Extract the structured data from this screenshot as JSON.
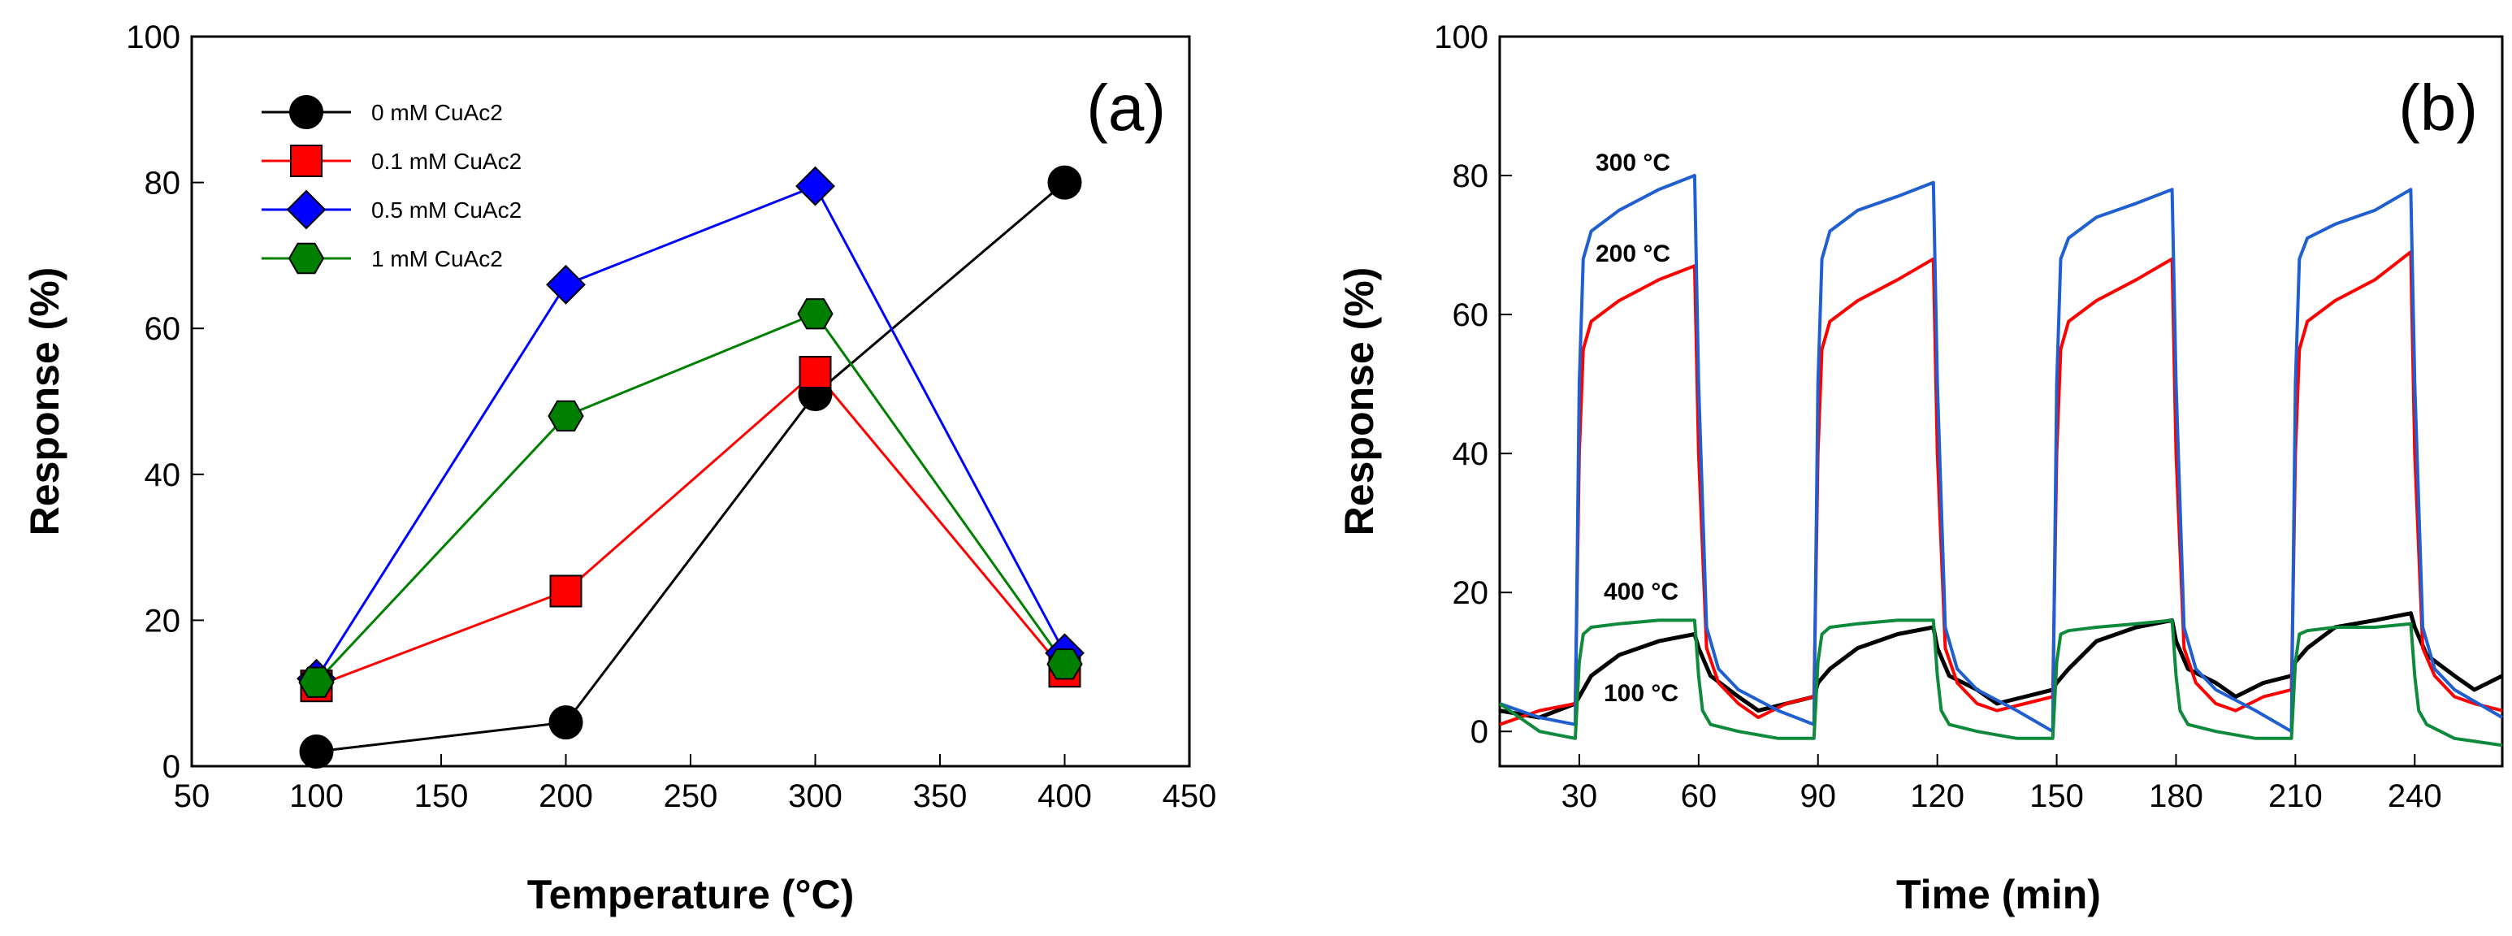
{
  "chart_data": [
    {
      "type": "line",
      "panel_label": "(a)",
      "title": "",
      "xlabel": "Temperature (°C)",
      "ylabel": "Response (%)",
      "xlim": [
        50,
        450
      ],
      "ylim": [
        0,
        100
      ],
      "xticks": [
        "50",
        "100",
        "150",
        "200",
        "250",
        "300",
        "350",
        "400",
        "450"
      ],
      "yticks": [
        "0",
        "20",
        "40",
        "60",
        "80",
        "100"
      ],
      "legend_position": "top-left",
      "series": [
        {
          "name": "0 mM CuAc2",
          "color": "#000000",
          "marker": "circle",
          "x": [
            100,
            200,
            300,
            400
          ],
          "values": [
            2,
            6,
            51,
            80
          ]
        },
        {
          "name": "0.1 mM CuAc2",
          "color": "#ff0000",
          "marker": "square",
          "x": [
            100,
            200,
            300,
            400
          ],
          "values": [
            11,
            24,
            54,
            13
          ]
        },
        {
          "name": "0.5 mM CuAc2",
          "color": "#0000ff",
          "marker": "diamond",
          "x": [
            100,
            200,
            300,
            400
          ],
          "values": [
            12,
            66,
            79.5,
            15.5
          ]
        },
        {
          "name": "1 mM CuAc2",
          "color": "#008000",
          "marker": "hexagon",
          "x": [
            100,
            200,
            300,
            400
          ],
          "values": [
            11.5,
            48,
            62,
            14
          ]
        }
      ]
    },
    {
      "type": "line",
      "panel_label": "(b)",
      "title": "",
      "xlabel": "Time (min)",
      "ylabel": "Response (%)",
      "xlim": [
        10,
        262
      ],
      "ylim": [
        -5,
        100
      ],
      "xticks": [
        "30",
        "60",
        "90",
        "120",
        "150",
        "180",
        "210",
        "240"
      ],
      "yticks": [
        "0",
        "20",
        "40",
        "60",
        "80",
        "100"
      ],
      "annotations": [
        "300 °C",
        "200 °C",
        "400 °C",
        "100 °C"
      ],
      "series": [
        {
          "name": "100 °C",
          "color": "#000000",
          "x": [
            10,
            20,
            29,
            30,
            33,
            40,
            50,
            59,
            60,
            63,
            70,
            75,
            82,
            89,
            90,
            93,
            100,
            110,
            119,
            120,
            123,
            130,
            135,
            142,
            149,
            150,
            153,
            160,
            170,
            179,
            180,
            183,
            190,
            195,
            202,
            209,
            210,
            213,
            220,
            230,
            239,
            240,
            243,
            250,
            255,
            262
          ],
          "values": [
            3,
            2,
            4,
            5,
            8,
            11,
            13,
            14,
            12,
            8,
            5,
            3,
            4,
            5,
            7,
            9,
            12,
            14,
            15,
            12,
            8,
            6,
            4,
            5,
            6,
            7,
            9,
            13,
            15,
            16,
            13,
            9,
            7,
            5,
            7,
            8,
            10,
            12,
            15,
            16,
            17,
            15,
            11,
            8,
            6,
            8
          ]
        },
        {
          "name": "200 °C",
          "color": "#ff0000",
          "x": [
            10,
            20,
            29,
            30,
            31,
            33,
            40,
            50,
            59,
            60,
            62,
            65,
            70,
            75,
            82,
            89,
            90,
            91,
            93,
            100,
            110,
            119,
            120,
            122,
            125,
            130,
            135,
            142,
            149,
            150,
            151,
            153,
            160,
            170,
            179,
            180,
            182,
            185,
            190,
            195,
            202,
            209,
            210,
            211,
            213,
            220,
            230,
            239,
            240,
            242,
            245,
            250,
            255,
            262
          ],
          "values": [
            1,
            3,
            4,
            40,
            55,
            59,
            62,
            65,
            67,
            40,
            12,
            7,
            4,
            2,
            4,
            5,
            40,
            55,
            59,
            62,
            65,
            68,
            40,
            12,
            7,
            4,
            3,
            4,
            5,
            40,
            55,
            59,
            62,
            65,
            68,
            40,
            12,
            7,
            4,
            3,
            5,
            6,
            40,
            55,
            59,
            62,
            65,
            69,
            40,
            12,
            8,
            5,
            4,
            3
          ]
        },
        {
          "name": "300 °C",
          "color": "#1f5fd0",
          "x": [
            10,
            20,
            29,
            30,
            31,
            33,
            40,
            50,
            59,
            60,
            62,
            65,
            70,
            80,
            89,
            90,
            91,
            93,
            100,
            110,
            119,
            120,
            122,
            125,
            130,
            140,
            149,
            150,
            151,
            153,
            160,
            170,
            179,
            180,
            182,
            185,
            190,
            200,
            209,
            210,
            211,
            213,
            220,
            230,
            239,
            240,
            242,
            245,
            250,
            262
          ],
          "values": [
            4,
            2,
            1,
            50,
            68,
            72,
            75,
            78,
            80,
            50,
            15,
            9,
            6,
            3,
            1,
            50,
            68,
            72,
            75,
            77,
            79,
            50,
            15,
            9,
            6,
            3,
            0,
            50,
            68,
            71,
            74,
            76,
            78,
            50,
            15,
            9,
            6,
            3,
            0,
            50,
            68,
            71,
            73,
            75,
            78,
            50,
            15,
            9,
            6,
            2
          ]
        },
        {
          "name": "400 °C",
          "color": "#0f8a3c",
          "x": [
            10,
            20,
            29,
            30,
            31,
            33,
            40,
            50,
            59,
            60,
            61,
            63,
            70,
            80,
            89,
            90,
            91,
            93,
            100,
            110,
            119,
            120,
            121,
            123,
            130,
            140,
            149,
            150,
            151,
            153,
            160,
            170,
            179,
            180,
            181,
            183,
            190,
            200,
            209,
            210,
            211,
            213,
            220,
            230,
            239,
            240,
            241,
            243,
            250,
            262
          ],
          "values": [
            4,
            0,
            -1,
            10,
            14,
            15,
            15.5,
            16,
            16,
            8,
            3,
            1,
            0,
            -1,
            -1,
            10,
            14,
            15,
            15.5,
            16,
            16,
            8,
            3,
            1,
            0,
            -1,
            -1,
            10,
            14,
            14.5,
            15,
            15.5,
            16,
            8,
            3,
            1,
            0,
            -1,
            -1,
            10,
            14,
            14.5,
            15,
            15,
            15.5,
            8,
            3,
            1,
            -1,
            -2
          ]
        }
      ]
    }
  ]
}
